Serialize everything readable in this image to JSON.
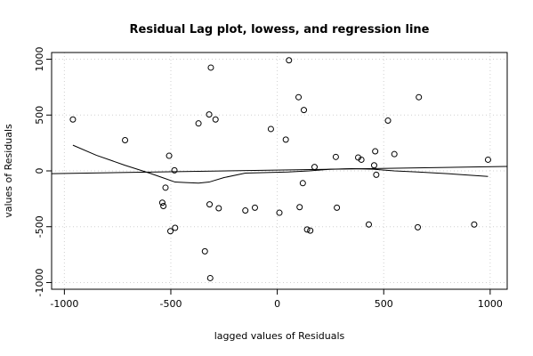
{
  "chart_data": {
    "type": "scatter",
    "title": "Residual Lag plot, lowess, and regression line",
    "xlabel": "lagged values of Residuals",
    "ylabel": "values of Residuals",
    "xlim": [
      -1060,
      1080
    ],
    "ylim": [
      -1060,
      1060
    ],
    "xticks": [
      -1000,
      -500,
      0,
      500,
      1000
    ],
    "yticks": [
      -1000,
      -500,
      0,
      500,
      1000
    ],
    "grid": true,
    "points": [
      {
        "x": -960,
        "y": 460
      },
      {
        "x": -715,
        "y": 275
      },
      {
        "x": -540,
        "y": -285
      },
      {
        "x": -535,
        "y": -315
      },
      {
        "x": -525,
        "y": -150
      },
      {
        "x": -508,
        "y": 135
      },
      {
        "x": -502,
        "y": -540
      },
      {
        "x": -483,
        "y": 5
      },
      {
        "x": -480,
        "y": -510
      },
      {
        "x": -370,
        "y": 425
      },
      {
        "x": -340,
        "y": -720
      },
      {
        "x": -320,
        "y": 505
      },
      {
        "x": -318,
        "y": -300
      },
      {
        "x": -315,
        "y": -960
      },
      {
        "x": -312,
        "y": 925
      },
      {
        "x": -290,
        "y": 460
      },
      {
        "x": -275,
        "y": -335
      },
      {
        "x": -150,
        "y": -355
      },
      {
        "x": -105,
        "y": -330
      },
      {
        "x": -30,
        "y": 375
      },
      {
        "x": 10,
        "y": -375
      },
      {
        "x": 40,
        "y": 280
      },
      {
        "x": 55,
        "y": 990
      },
      {
        "x": 100,
        "y": 660
      },
      {
        "x": 105,
        "y": -325
      },
      {
        "x": 120,
        "y": -110
      },
      {
        "x": 125,
        "y": 545
      },
      {
        "x": 140,
        "y": -525
      },
      {
        "x": 155,
        "y": -535
      },
      {
        "x": 175,
        "y": 35
      },
      {
        "x": 275,
        "y": 125
      },
      {
        "x": 280,
        "y": -330
      },
      {
        "x": 380,
        "y": 120
      },
      {
        "x": 395,
        "y": 100
      },
      {
        "x": 430,
        "y": -480
      },
      {
        "x": 455,
        "y": 50
      },
      {
        "x": 460,
        "y": 175
      },
      {
        "x": 465,
        "y": -35
      },
      {
        "x": 520,
        "y": 450
      },
      {
        "x": 550,
        "y": 150
      },
      {
        "x": 660,
        "y": -505
      },
      {
        "x": 665,
        "y": 660
      },
      {
        "x": 925,
        "y": -480
      },
      {
        "x": 990,
        "y": 100
      }
    ],
    "regression_line": {
      "x": [
        -1060,
        1080
      ],
      "y": [
        -25,
        40
      ]
    },
    "lowess": {
      "x": [
        -960,
        -850,
        -715,
        -600,
        -540,
        -480,
        -430,
        -370,
        -320,
        -250,
        -150,
        -50,
        50,
        150,
        250,
        350,
        450,
        550,
        660,
        800,
        990
      ],
      "y": [
        230,
        140,
        50,
        -20,
        -60,
        -100,
        -105,
        -110,
        -100,
        -60,
        -20,
        -15,
        -10,
        0,
        15,
        20,
        15,
        0,
        -10,
        -25,
        -50
      ]
    }
  }
}
